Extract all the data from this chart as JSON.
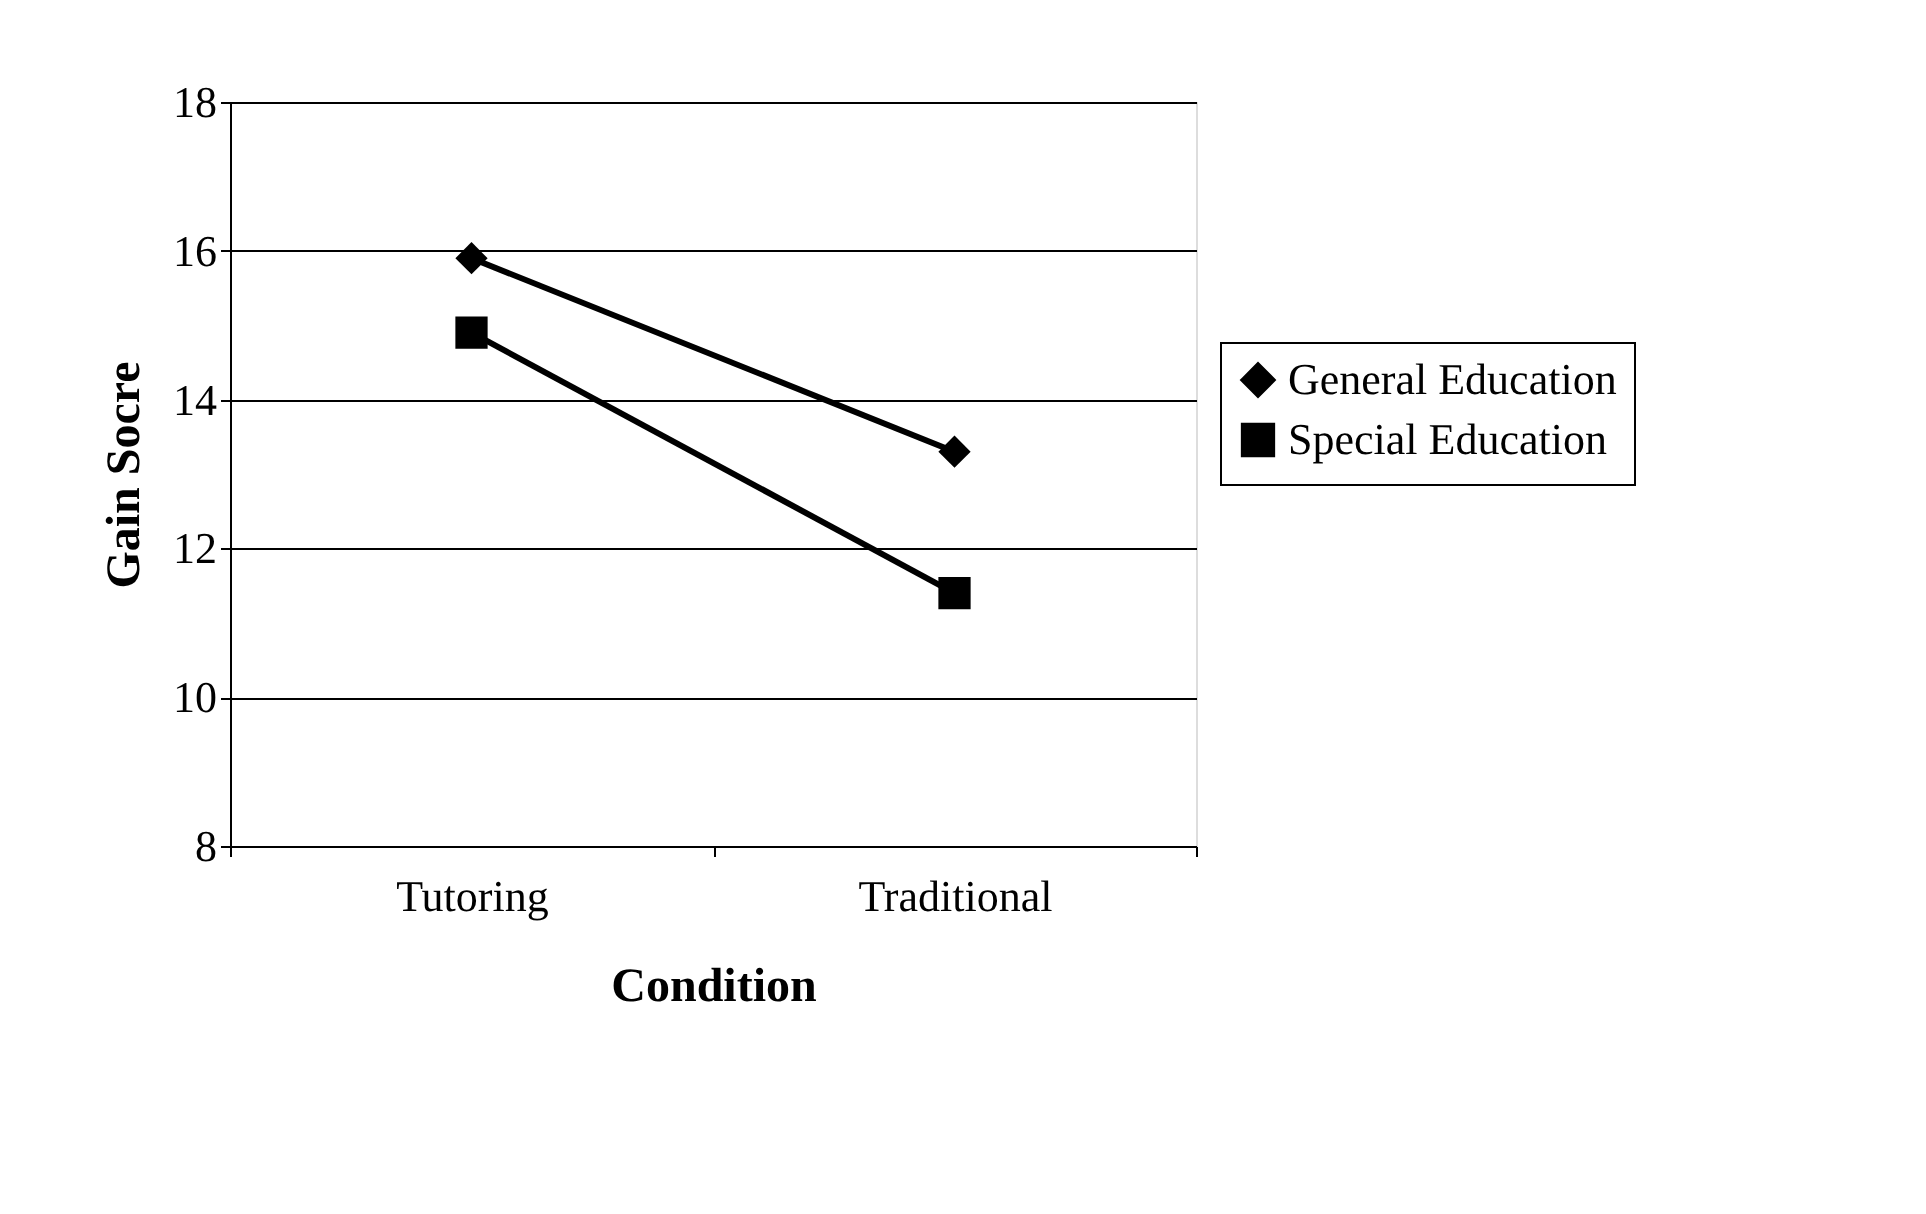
{
  "chart_data": {
    "type": "line",
    "xlabel": "Condition",
    "ylabel": "Gain Socre",
    "categories": [
      "Tutoring",
      "Traditional"
    ],
    "series": [
      {
        "name": "General Education",
        "color": "#000000",
        "marker": "diamond",
        "values": [
          15.9,
          13.3
        ]
      },
      {
        "name": "Special Education",
        "color": "#000000",
        "marker": "square",
        "values": [
          14.9,
          11.4
        ]
      }
    ],
    "ylim": [
      8,
      18
    ],
    "yticks": [
      8,
      10,
      12,
      14,
      16,
      18
    ],
    "grid": "y",
    "legend": "right",
    "line_style": "solid"
  }
}
